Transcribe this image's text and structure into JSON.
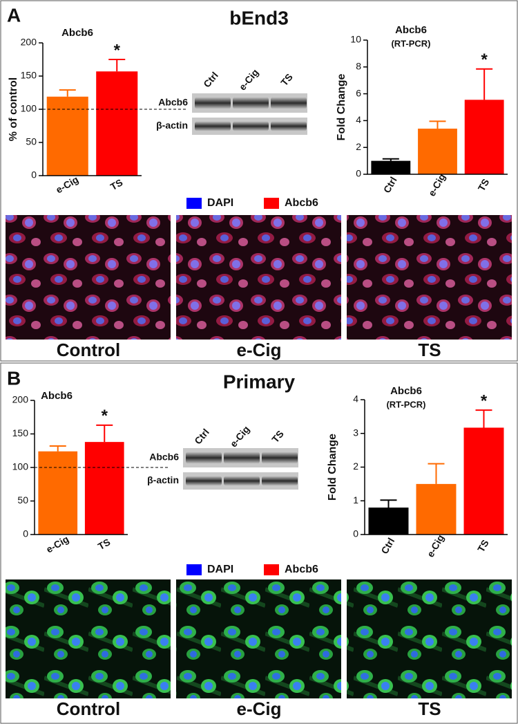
{
  "panels": [
    {
      "label": "A",
      "title": "bEnd3",
      "blot": {
        "lanes": [
          {
            "name": "Ctrl",
            "color": "#000000"
          },
          {
            "name": "e-Cig",
            "color": "#ff6a00"
          },
          {
            "name": "TS",
            "color": "#ff0000"
          }
        ],
        "rows": [
          "Abcb6",
          "β-actin"
        ]
      },
      "legend": [
        {
          "name": "DAPI",
          "color": "#0000ff"
        },
        {
          "name": "Abcb6",
          "color": "#ff0000"
        }
      ],
      "images": [
        {
          "name": "Control",
          "color": "#000000"
        },
        {
          "name": "e-Cig",
          "color": "#ff6a00"
        },
        {
          "name": "TS",
          "color": "#ff0000"
        }
      ]
    },
    {
      "label": "B",
      "title": "Primary",
      "blot": {
        "lanes": [
          {
            "name": "Ctrl",
            "color": "#000000"
          },
          {
            "name": "e-Cig",
            "color": "#ff6a00"
          },
          {
            "name": "TS",
            "color": "#ff0000"
          }
        ],
        "rows": [
          "Abcb6",
          "β-actin"
        ]
      },
      "legend": [
        {
          "name": "DAPI",
          "color": "#0000ff"
        },
        {
          "name": "Abcb6",
          "color": "#ff0000"
        }
      ],
      "images": [
        {
          "name": "Control",
          "color": "#000000"
        },
        {
          "name": "e-Cig",
          "color": "#ff6a00"
        },
        {
          "name": "TS",
          "color": "#ff0000"
        }
      ]
    }
  ],
  "chart_data": [
    {
      "type": "bar",
      "title": "Abcb6",
      "y_label": "% of control",
      "categories": [
        "e-Cig",
        "TS"
      ],
      "values": [
        119,
        157
      ],
      "errors": [
        10,
        18
      ],
      "colors": [
        "#ff6a00",
        "#ff0000"
      ],
      "ylim": [
        0,
        200
      ],
      "yticks": [
        0,
        50,
        100,
        150,
        200
      ],
      "reference_line": 100,
      "annotations": [
        {
          "text": "*",
          "category": "TS"
        }
      ]
    },
    {
      "type": "bar",
      "title": "Abcb6",
      "subtitle": "(RT-PCR)",
      "y_label": "Fold Change",
      "y_label_color": "#1a1aff",
      "categories": [
        "Ctrl",
        "e-Cig",
        "TS"
      ],
      "values": [
        1.0,
        3.4,
        5.55
      ],
      "errors": [
        0.15,
        0.55,
        2.3
      ],
      "colors": [
        "#000000",
        "#ff6a00",
        "#ff0000"
      ],
      "ylim": [
        0,
        10
      ],
      "yticks": [
        0,
        2,
        4,
        6,
        8,
        10
      ],
      "annotations": [
        {
          "text": "*",
          "category": "TS"
        }
      ]
    },
    {
      "type": "bar",
      "title": "Abcb6",
      "categories": [
        "e-Cig",
        "TS"
      ],
      "values": [
        124,
        138
      ],
      "errors": [
        8,
        25
      ],
      "colors": [
        "#ff6a00",
        "#ff0000"
      ],
      "ylim": [
        0,
        200
      ],
      "yticks": [
        0,
        50,
        100,
        150,
        200
      ],
      "reference_line": 100,
      "annotations": [
        {
          "text": "*",
          "category": "TS"
        }
      ]
    },
    {
      "type": "bar",
      "title": "Abcb6",
      "subtitle": "(RT-PCR)",
      "y_label": "Fold Change",
      "y_label_color": "#1a1aff",
      "categories": [
        "Ctrl",
        "e-Cig",
        "TS"
      ],
      "values": [
        0.8,
        1.5,
        3.17
      ],
      "errors": [
        0.22,
        0.6,
        0.52
      ],
      "colors": [
        "#000000",
        "#ff6a00",
        "#ff0000"
      ],
      "ylim": [
        0,
        4
      ],
      "yticks": [
        0,
        1,
        2,
        3,
        4
      ],
      "annotations": [
        {
          "text": "*",
          "category": "TS"
        }
      ]
    }
  ]
}
